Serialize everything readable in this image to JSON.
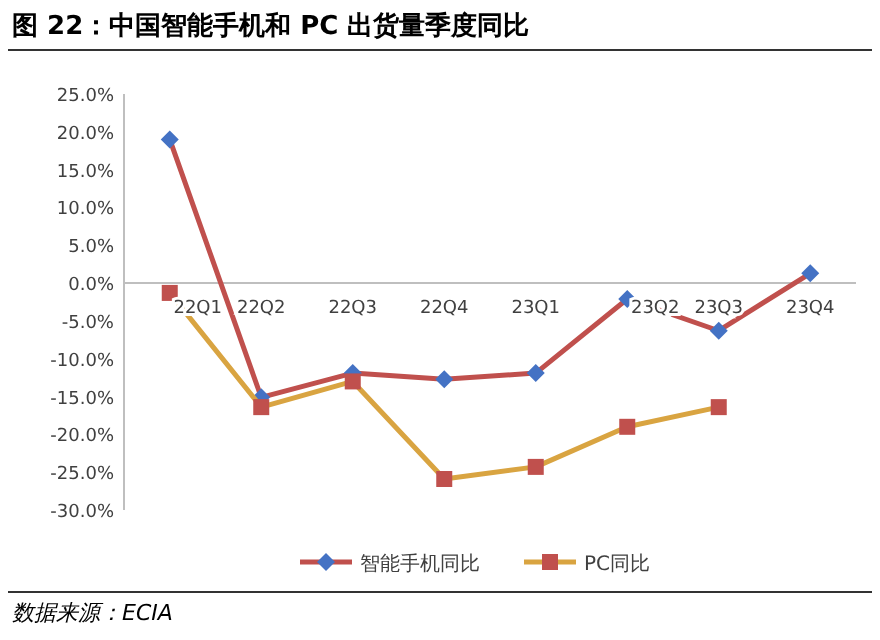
{
  "chart_data": {
    "type": "line",
    "title": "图 22：中国智能手机和 PC 出货量季度同比",
    "categories": [
      "22Q1",
      "22Q2",
      "22Q3",
      "22Q4",
      "23Q1",
      "23Q2",
      "23Q3",
      "23Q4"
    ],
    "series": [
      {
        "name": "智能手机同比",
        "color": "#c0504d",
        "marker": "diamond",
        "colors": [
          "#4472c4",
          "#4472c4",
          "#4472c4",
          "#4472c4",
          "#4472c4",
          "#4472c4",
          "#4472c4",
          "#4472c4"
        ],
        "values": [
          19.0,
          -15.1,
          -11.9,
          -12.7,
          -11.9,
          -2.1,
          -6.3,
          1.3
        ]
      },
      {
        "name": "PC同比",
        "color": "#d9a441",
        "marker": "square",
        "colors": [
          "#c0504d",
          "#c0504d",
          "#c0504d",
          "#c0504d",
          "#c0504d",
          "#c0504d",
          "#c0504d",
          null
        ],
        "values": [
          -1.3,
          -16.4,
          -13.0,
          -25.9,
          -24.3,
          -19.0,
          -16.4,
          null
        ]
      }
    ],
    "ylim": [
      -30,
      25
    ],
    "yticks": [
      {
        "value": 25,
        "label": "25.0%"
      },
      {
        "value": 20,
        "label": "20.0%"
      },
      {
        "value": 15,
        "label": "15.0%"
      },
      {
        "value": 10,
        "label": "10.0%"
      },
      {
        "value": 5,
        "label": "5.0%"
      },
      {
        "value": 0,
        "label": "0.0%"
      },
      {
        "value": -5,
        "label": "-5.0%"
      },
      {
        "value": -10,
        "label": "-10.0%"
      },
      {
        "value": -15,
        "label": "-15.0%"
      },
      {
        "value": -20,
        "label": "-20.0%"
      },
      {
        "value": -25,
        "label": "-25.0%"
      },
      {
        "value": -30,
        "label": "-30.0%"
      }
    ],
    "legend": "bottom",
    "annotations": [
      "数据来源：ECIA"
    ]
  }
}
